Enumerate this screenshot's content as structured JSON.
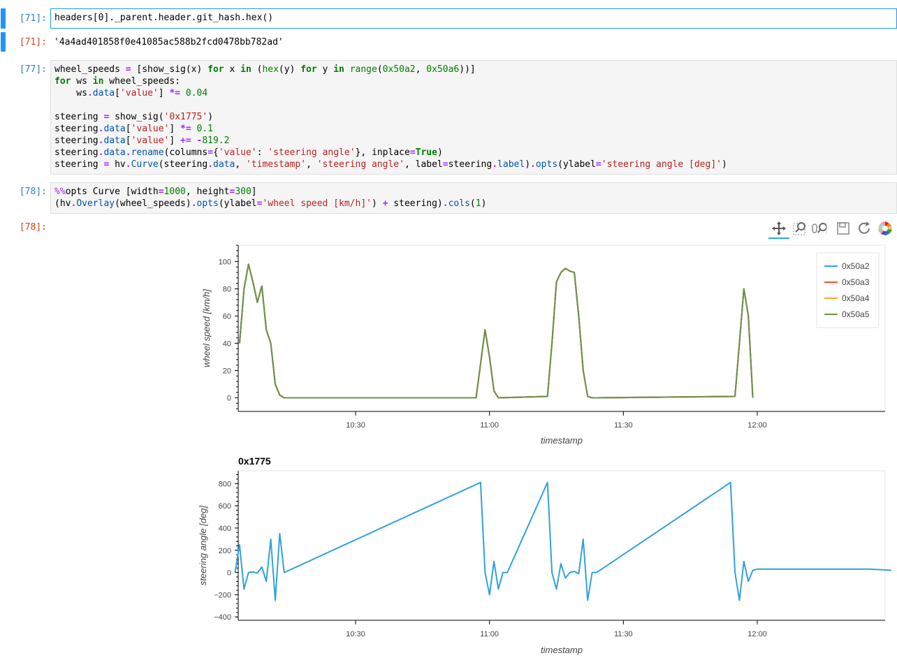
{
  "cells": [
    {
      "prompt": "[71]:",
      "code": "headers[0]._parent.header.git_hash.hex()"
    },
    {
      "prompt": "[71]:",
      "output": "'4a4ad401858f0e41085ac588b2fcd0478bb782ad'"
    },
    {
      "prompt": "[77]:"
    },
    {
      "prompt": "[78]:"
    },
    {
      "prompt": "[78]:"
    }
  ],
  "toolbar": {
    "tools": [
      "pan-icon",
      "box-zoom-icon",
      "wheel-zoom-icon",
      "save-icon",
      "reset-icon",
      "bokeh-logo"
    ]
  },
  "colors": {
    "s0": "#30a2da",
    "s1": "#fc4f30",
    "s2": "#e5ae38",
    "s3": "#6d904f"
  },
  "chart_data": [
    {
      "type": "line",
      "title": "",
      "xlabel": "timestamp",
      "ylabel": "wheel speed [km/h]",
      "xticks": [
        "10:30",
        "11:00",
        "11:30",
        "12:00"
      ],
      "yticks": [
        "0",
        "20",
        "40",
        "60",
        "80",
        "100"
      ],
      "ylim": [
        -10,
        112
      ],
      "legend_position": "top-right",
      "series": [
        {
          "name": "0x50a2",
          "color": "#30a2da"
        },
        {
          "name": "0x50a3",
          "color": "#fc4f30"
        },
        {
          "name": "0x50a4",
          "color": "#e5ae38"
        },
        {
          "name": "0x50a5",
          "color": "#6d904f"
        }
      ],
      "x": [
        "10:04",
        "10:05",
        "10:06",
        "10:07",
        "10:08",
        "10:09",
        "10:10",
        "10:11",
        "10:12",
        "10:13",
        "10:14",
        "10:15",
        "10:16",
        "10:57",
        "10:58",
        "10:59",
        "11:00",
        "11:01",
        "11:02",
        "11:13",
        "11:14",
        "11:15",
        "11:16",
        "11:17",
        "11:18",
        "11:19",
        "11:20",
        "11:21",
        "11:22",
        "11:23",
        "11:24",
        "11:55",
        "11:56",
        "11:57",
        "11:58",
        "11:59"
      ],
      "values": [
        40,
        80,
        98,
        85,
        70,
        82,
        50,
        40,
        10,
        2,
        0,
        0,
        0,
        0,
        25,
        50,
        30,
        5,
        0,
        1,
        40,
        85,
        92,
        95,
        93,
        92,
        60,
        20,
        1,
        0,
        0,
        1,
        40,
        80,
        60,
        0
      ]
    },
    {
      "type": "line",
      "title": "0x1775",
      "xlabel": "timestamp",
      "ylabel": "steering angle [deg]",
      "xticks": [
        "10:30",
        "11:00",
        "11:30",
        "12:00"
      ],
      "yticks": [
        "−400",
        "−200",
        "0",
        "200",
        "400",
        "600",
        "800"
      ],
      "ylim": [
        -430,
        915
      ],
      "series": [
        {
          "name": "0x1775",
          "color": "#30a2da"
        }
      ],
      "x": [
        "10:03",
        "10:04",
        "10:05",
        "10:06",
        "10:07",
        "10:08",
        "10:09",
        "10:10",
        "10:11",
        "10:12",
        "10:13",
        "10:14",
        "10:58",
        "10:59",
        "11:00",
        "11:01",
        "11:02",
        "11:03",
        "11:04",
        "11:13",
        "11:14",
        "11:15",
        "11:16",
        "11:17",
        "11:18",
        "11:19",
        "11:20",
        "11:21",
        "11:22",
        "11:23",
        "11:24",
        "11:54",
        "11:55",
        "11:56",
        "11:57",
        "11:58",
        "11:59",
        "12:00",
        "12:25",
        "12:30"
      ],
      "values": [
        0,
        250,
        -150,
        0,
        5,
        -5,
        50,
        -80,
        300,
        -250,
        350,
        0,
        810,
        0,
        -200,
        100,
        -150,
        0,
        0,
        810,
        0,
        -150,
        80,
        -50,
        0,
        10,
        -10,
        300,
        -250,
        0,
        0,
        810,
        0,
        -250,
        100,
        -80,
        20,
        30,
        30,
        20
      ]
    }
  ]
}
